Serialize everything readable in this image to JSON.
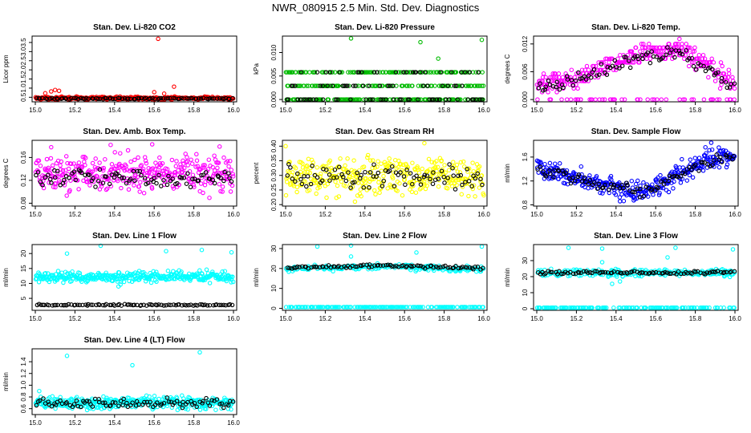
{
  "title": "NWR_080915  2.5 Min. Std. Dev. Diagnostics",
  "colors": {
    "background": "#ffffff",
    "axis": "#000000",
    "secondary_points": "#000000"
  },
  "chart_data": [
    {
      "type": "scatter",
      "title": "Stan. Dev. Li-820 CO2",
      "ylabel": "Licor ppm",
      "color": "#ff0000",
      "xlim": [
        15.0,
        16.0
      ],
      "ylim": [
        0.25,
        3.85
      ],
      "xticks": [
        "15.0",
        "15.2",
        "15.4",
        "15.6",
        "15.8",
        "16.0"
      ],
      "yticks": [
        {
          "v": 0.5,
          "label": "0.5"
        },
        {
          "v": 1.0,
          "label": "1.0"
        },
        {
          "v": 1.5,
          "label": "1.5"
        },
        {
          "v": 2.0,
          "label": "2.0"
        },
        {
          "v": 2.5,
          "label": "2.5"
        },
        {
          "v": 3.0,
          "label": "3.0"
        },
        {
          "v": 3.5,
          "label": "3.5"
        }
      ],
      "primary": {
        "base": 0.45,
        "spread": 0.05
      },
      "secondary": {
        "base": 0.43,
        "spread": 0.03
      },
      "outliers": [
        {
          "x": 15.62,
          "y": 3.7
        },
        {
          "x": 15.05,
          "y": 0.72
        },
        {
          "x": 15.08,
          "y": 0.82
        },
        {
          "x": 15.1,
          "y": 0.9
        },
        {
          "x": 15.12,
          "y": 0.85
        },
        {
          "x": 15.7,
          "y": 1.08
        },
        {
          "x": 15.6,
          "y": 0.78
        },
        {
          "x": 15.65,
          "y": 0.7
        }
      ]
    },
    {
      "type": "scatter",
      "title": "Stan. Dev. Li-820 Pressure",
      "ylabel": "kPa",
      "color": "#00bb00",
      "xlim": [
        15.0,
        16.0
      ],
      "ylim": [
        -0.0005,
        0.0135
      ],
      "xticks": [
        "15.0",
        "15.2",
        "15.4",
        "15.6",
        "15.8",
        "16.0"
      ],
      "yticks": [
        {
          "v": 0.0,
          "label": "0.000"
        },
        {
          "v": 0.005,
          "label": "0.005"
        },
        {
          "v": 0.01,
          "label": "0.010"
        }
      ],
      "primary": {
        "levels": [
          0.0,
          0.0029,
          0.0058
        ]
      },
      "secondary": {
        "levels": [
          0.0,
          0.0029,
          0.0058
        ],
        "fraction": 0.3
      },
      "outliers": [
        {
          "x": 15.33,
          "y": 0.013
        },
        {
          "x": 15.68,
          "y": 0.0122
        },
        {
          "x": 15.77,
          "y": 0.0087
        },
        {
          "x": 15.99,
          "y": 0.0127
        }
      ]
    },
    {
      "type": "scatter",
      "title": "Stan. Dev. Li-820 Temp.",
      "ylabel": "degrees C",
      "color": "#ff00ff",
      "xlim": [
        15.0,
        16.0
      ],
      "ylim": [
        -0.0005,
        0.0137
      ],
      "xticks": [
        "15.0",
        "15.2",
        "15.4",
        "15.6",
        "15.8",
        "16.0"
      ],
      "yticks": [
        {
          "v": 0.0,
          "label": "0.000"
        },
        {
          "v": 0.006,
          "label": "0.006"
        },
        {
          "v": 0.012,
          "label": "0.012"
        }
      ],
      "primary": {
        "curve": [
          [
            15.0,
            0.0035
          ],
          [
            15.2,
            0.0042
          ],
          [
            15.3,
            0.0065
          ],
          [
            15.5,
            0.0095
          ],
          [
            15.72,
            0.011
          ],
          [
            15.85,
            0.0075
          ],
          [
            16.0,
            0.0035
          ]
        ],
        "spread": 0.0015,
        "quantum": 0.0008,
        "zero_fraction": 0.12
      },
      "secondary": {
        "curve": [
          [
            15.0,
            0.003
          ],
          [
            15.2,
            0.004
          ],
          [
            15.3,
            0.006
          ],
          [
            15.5,
            0.009
          ],
          [
            15.72,
            0.0105
          ],
          [
            15.85,
            0.007
          ],
          [
            16.0,
            0.003
          ]
        ],
        "spread": 0.0013
      },
      "outliers": [
        {
          "x": 15.72,
          "y": 0.0131
        }
      ]
    },
    {
      "type": "scatter",
      "title": "Stan. Dev. Amb. Box Temp.",
      "ylabel": "degrees C",
      "color": "#ff00ff",
      "xlim": [
        15.0,
        16.0
      ],
      "ylim": [
        0.075,
        0.19
      ],
      "xticks": [
        "15.0",
        "15.2",
        "15.4",
        "15.6",
        "15.8",
        "16.0"
      ],
      "yticks": [
        {
          "v": 0.08,
          "label": "0.08"
        },
        {
          "v": 0.12,
          "label": "0.12"
        },
        {
          "v": 0.16,
          "label": "0.16"
        }
      ],
      "primary": {
        "base": 0.131,
        "spread": 0.022
      },
      "secondary": {
        "base": 0.125,
        "spread": 0.012
      },
      "outliers": [
        {
          "x": 15.38,
          "y": 0.182
        },
        {
          "x": 15.59,
          "y": 0.183
        },
        {
          "x": 15.08,
          "y": 0.178
        },
        {
          "x": 15.93,
          "y": 0.179
        }
      ]
    },
    {
      "type": "scatter",
      "title": "Stan. Dev. Gas Stream RH",
      "ylabel": "percent",
      "color": "#ffff00",
      "xlim": [
        15.0,
        16.0
      ],
      "ylim": [
        0.195,
        0.42
      ],
      "xticks": [
        "15.0",
        "15.2",
        "15.4",
        "15.6",
        "15.8",
        "16.0"
      ],
      "yticks": [
        {
          "v": 0.2,
          "label": "0.20"
        },
        {
          "v": 0.25,
          "label": "0.25"
        },
        {
          "v": 0.3,
          "label": "0.30"
        },
        {
          "v": 0.35,
          "label": "0.35"
        },
        {
          "v": 0.4,
          "label": "0.40"
        }
      ],
      "primary": {
        "base": 0.3,
        "spread": 0.045
      },
      "secondary": {
        "base": 0.295,
        "spread": 0.03
      },
      "outliers": [
        {
          "x": 15.0,
          "y": 0.4
        },
        {
          "x": 15.7,
          "y": 0.41
        },
        {
          "x": 15.35,
          "y": 0.21
        }
      ]
    },
    {
      "type": "scatter",
      "title": "Stan. Dev. Sample Flow",
      "ylabel": "ml/min",
      "color": "#0000ff",
      "xlim": [
        15.0,
        16.0
      ],
      "ylim": [
        0.78,
        1.88
      ],
      "xticks": [
        "15.0",
        "15.2",
        "15.4",
        "15.6",
        "15.8",
        "16.0"
      ],
      "yticks": [
        {
          "v": 0.8,
          "label": "0.8"
        },
        {
          "v": 1.2,
          "label": "1.2"
        },
        {
          "v": 1.6,
          "label": "1.6"
        }
      ],
      "primary": {
        "curve": [
          [
            15.0,
            1.42
          ],
          [
            15.2,
            1.25
          ],
          [
            15.4,
            1.08
          ],
          [
            15.55,
            1.02
          ],
          [
            15.7,
            1.3
          ],
          [
            15.85,
            1.55
          ],
          [
            16.0,
            1.62
          ]
        ],
        "spread": 0.12
      },
      "secondary": {
        "curve": [
          [
            15.0,
            1.4
          ],
          [
            15.2,
            1.24
          ],
          [
            15.4,
            1.08
          ],
          [
            15.55,
            1.02
          ],
          [
            15.7,
            1.28
          ],
          [
            15.85,
            1.52
          ],
          [
            16.0,
            1.6
          ]
        ],
        "spread": 0.08
      },
      "outliers": [
        {
          "x": 15.88,
          "y": 1.84
        },
        {
          "x": 15.42,
          "y": 0.86
        }
      ]
    },
    {
      "type": "scatter",
      "title": "Stan. Dev. Line 1 Flow",
      "ylabel": "ml/min",
      "color": "#00ffff",
      "xlim": [
        15.0,
        16.0
      ],
      "ylim": [
        1.0,
        23.0
      ],
      "xticks": [
        "15.0",
        "15.2",
        "15.4",
        "15.6",
        "15.8",
        "16.0"
      ],
      "yticks": [
        {
          "v": 5,
          "label": "5"
        },
        {
          "v": 10,
          "label": "10"
        },
        {
          "v": 15,
          "label": "15"
        },
        {
          "v": 20,
          "label": "20"
        }
      ],
      "primary": {
        "base": 12.2,
        "spread": 1.2
      },
      "secondary": {
        "base": 2.8,
        "spread": 0.2
      },
      "outliers": [
        {
          "x": 15.16,
          "y": 20.0
        },
        {
          "x": 15.33,
          "y": 22.6
        },
        {
          "x": 15.66,
          "y": 20.8
        },
        {
          "x": 15.84,
          "y": 21.2
        },
        {
          "x": 15.99,
          "y": 20.4
        },
        {
          "x": 15.42,
          "y": 9.0
        },
        {
          "x": 15.43,
          "y": 9.6
        }
      ]
    },
    {
      "type": "scatter",
      "title": "Stan. Dev. Line 2 Flow",
      "ylabel": "ml/min",
      "color": "#00ffff",
      "xlim": [
        15.0,
        16.0
      ],
      "ylim": [
        -1.0,
        32.0
      ],
      "xticks": [
        "15.0",
        "15.2",
        "15.4",
        "15.6",
        "15.8",
        "16.0"
      ],
      "yticks": [
        {
          "v": 0,
          "label": "0"
        },
        {
          "v": 10,
          "label": "10"
        },
        {
          "v": 20,
          "label": "20"
        },
        {
          "v": 30,
          "label": "30"
        }
      ],
      "primary": {
        "curve": [
          [
            15.0,
            19.8
          ],
          [
            15.5,
            21.2
          ],
          [
            16.0,
            19.4
          ]
        ],
        "spread": 1.0,
        "zero_fraction": 0.4
      },
      "secondary": {
        "curve": [
          [
            15.0,
            20.4
          ],
          [
            15.5,
            21.5
          ],
          [
            16.0,
            20.0
          ]
        ],
        "spread": 0.6
      },
      "outliers": [
        {
          "x": 15.16,
          "y": 31.0
        },
        {
          "x": 15.33,
          "y": 31.5
        },
        {
          "x": 15.66,
          "y": 28.0
        },
        {
          "x": 15.99,
          "y": 31.0
        },
        {
          "x": 15.33,
          "y": 26.0
        }
      ]
    },
    {
      "type": "scatter",
      "title": "Stan. Dev. Line 3 Flow",
      "ylabel": "ml/min",
      "color": "#00ffff",
      "xlim": [
        15.0,
        16.0
      ],
      "ylim": [
        -1.0,
        40.0
      ],
      "xticks": [
        "15.0",
        "15.2",
        "15.4",
        "15.6",
        "15.8",
        "16.0"
      ],
      "yticks": [
        {
          "v": 0,
          "label": "0"
        },
        {
          "v": 10,
          "label": "10"
        },
        {
          "v": 20,
          "label": "20"
        },
        {
          "v": 30,
          "label": "30"
        }
      ],
      "primary": {
        "base": 22.5,
        "spread": 1.5,
        "zero_fraction": 0.4
      },
      "secondary": {
        "base": 22.5,
        "spread": 0.8
      },
      "outliers": [
        {
          "x": 15.16,
          "y": 38.0
        },
        {
          "x": 15.33,
          "y": 37.5
        },
        {
          "x": 15.66,
          "y": 32.0
        },
        {
          "x": 15.7,
          "y": 38.0
        },
        {
          "x": 15.99,
          "y": 37.0
        },
        {
          "x": 15.33,
          "y": 29.0
        },
        {
          "x": 15.38,
          "y": 15.5
        },
        {
          "x": 15.42,
          "y": 17.0
        }
      ]
    },
    {
      "type": "scatter",
      "title": "Stan. Dev. Line 4 (LT) Flow",
      "ylabel": "ml/min",
      "color": "#00ffff",
      "xlim": [
        15.0,
        16.0
      ],
      "ylim": [
        0.5,
        1.62
      ],
      "xticks": [
        "15.0",
        "15.2",
        "15.4",
        "15.6",
        "15.8",
        "16.0"
      ],
      "yticks": [
        {
          "v": 0.6,
          "label": "0.6"
        },
        {
          "v": 0.8,
          "label": "0.8"
        },
        {
          "v": 1.0,
          "label": "1.0"
        },
        {
          "v": 1.2,
          "label": "1.2"
        },
        {
          "v": 1.4,
          "label": "1.4"
        }
      ],
      "primary": {
        "base": 0.7,
        "spread": 0.07
      },
      "secondary": {
        "base": 0.7,
        "spread": 0.06
      },
      "outliers": [
        {
          "x": 15.16,
          "y": 1.5
        },
        {
          "x": 15.49,
          "y": 1.34
        },
        {
          "x": 15.83,
          "y": 1.56
        },
        {
          "x": 15.02,
          "y": 0.9
        }
      ]
    }
  ]
}
